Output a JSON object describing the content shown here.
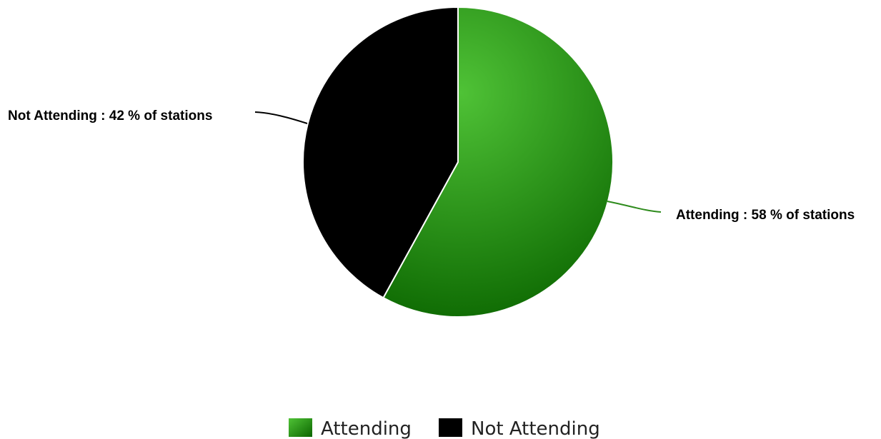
{
  "chart_data": {
    "type": "pie",
    "slices": [
      {
        "category": "Attending",
        "value": 58,
        "data_label": "Attending : 58 % of stations",
        "color": "#2e8b1c",
        "gradient": [
          "#4fc236",
          "#0b6600"
        ]
      },
      {
        "category": "Not Attending",
        "value": 42,
        "data_label": "Not Attending : 42 % of stations",
        "color": "#000000",
        "gradient": [
          "#000000",
          "#000000"
        ]
      }
    ],
    "start_angle": "12 o'clock",
    "direction": "clockwise",
    "legend": {
      "position": "bottom-center",
      "items": [
        "Attending",
        "Not Attending"
      ]
    }
  }
}
